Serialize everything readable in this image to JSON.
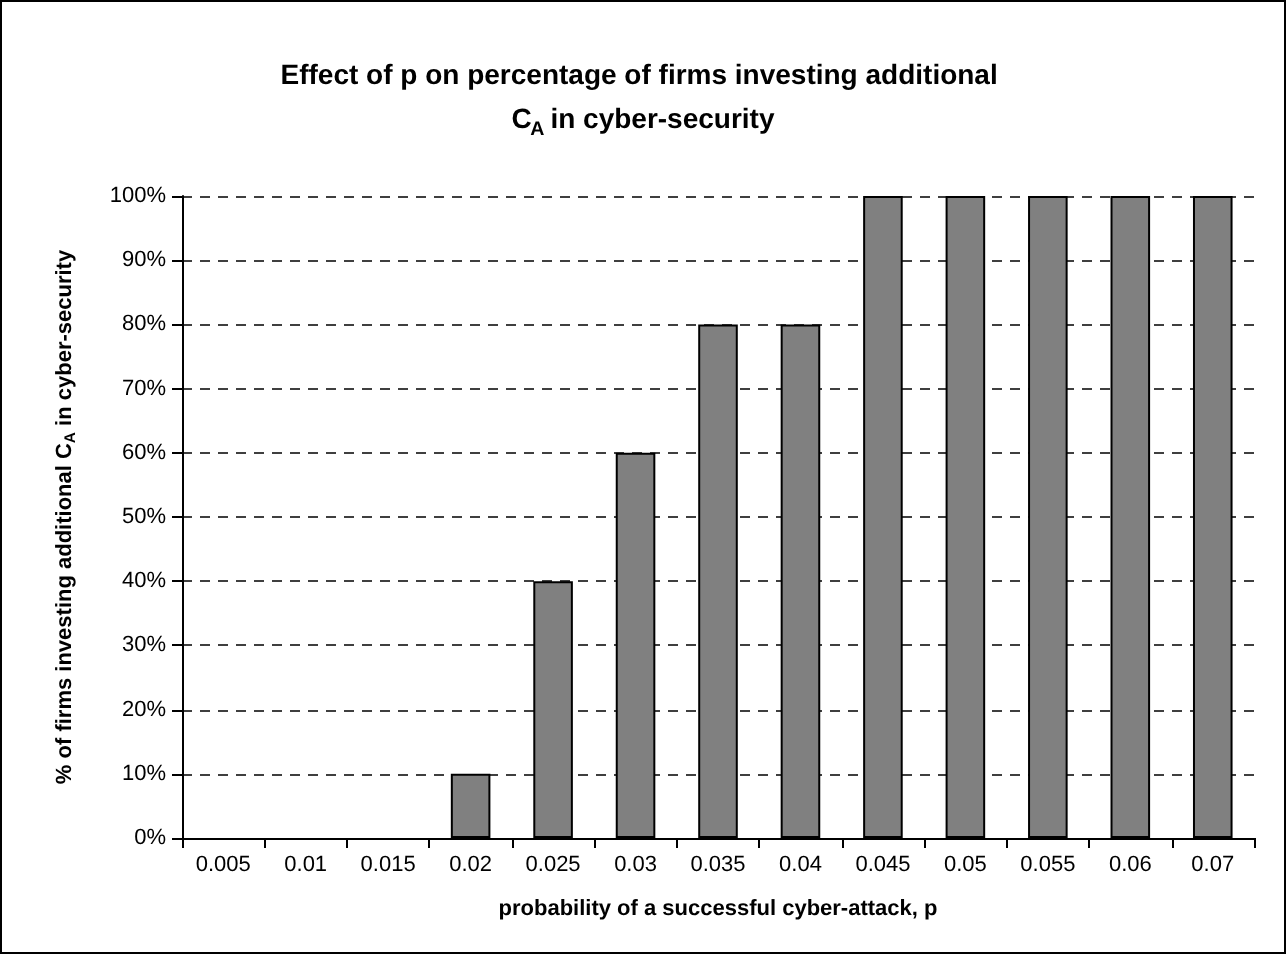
{
  "chart_data": {
    "type": "bar",
    "title": "Effect of p on percentage of firms investing additional C$_{A}$ in cyber-security",
    "xlabel": "probability of a successful cyber-attack, p",
    "ylabel": "% of firms investing additional C$_{A}$ in cyber-security",
    "categories": [
      "0.005",
      "0.01",
      "0.015",
      "0.02",
      "0.025",
      "0.03",
      "0.035",
      "0.04",
      "0.045",
      "0.05",
      "0.055",
      "0.06",
      "0.07"
    ],
    "values": [
      0,
      0,
      0,
      10,
      40,
      60,
      80,
      80,
      100,
      100,
      100,
      100,
      100
    ],
    "color": "#808080",
    "ylim": [
      0,
      100
    ],
    "yticks": [
      {
        "value": 0,
        "label": "0%"
      },
      {
        "value": 10,
        "label": "10%"
      },
      {
        "value": 20,
        "label": "20%"
      },
      {
        "value": 30,
        "label": "30%"
      },
      {
        "value": 40,
        "label": "40%"
      },
      {
        "value": 50,
        "label": "50%"
      },
      {
        "value": 60,
        "label": "60%"
      },
      {
        "value": 70,
        "label": "70%"
      },
      {
        "value": 80,
        "label": "80%"
      },
      {
        "value": 90,
        "label": "90%"
      },
      {
        "value": 100,
        "label": "100%"
      }
    ],
    "grid": "y"
  }
}
